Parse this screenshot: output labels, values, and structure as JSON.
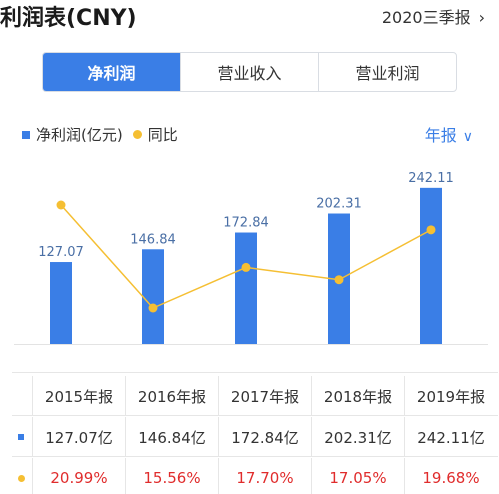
{
  "header": {
    "title": "利润表(CNY)",
    "period_label": "2020三季报",
    "period_chevron": "›"
  },
  "tabs": [
    {
      "label": "净利润",
      "active": true
    },
    {
      "label": "营业收入",
      "active": false
    },
    {
      "label": "营业利润",
      "active": false
    }
  ],
  "legend": {
    "series1_label": "净利润(亿元)",
    "series2_label": "同比"
  },
  "frequency": {
    "label": "年报",
    "chevron": "∨"
  },
  "colors": {
    "bar": "#3a7ee6",
    "line": "#f5bf33",
    "negative_text": "#e02c2c",
    "label_text": "#4a6fa5"
  },
  "chart_data": {
    "type": "bar",
    "categories": [
      "2015年报",
      "2016年报",
      "2017年报",
      "2018年报",
      "2019年报"
    ],
    "series": [
      {
        "name": "净利润(亿元)",
        "type": "bar",
        "values": [
          127.07,
          146.84,
          172.84,
          202.31,
          242.11
        ],
        "labels": [
          "127.07",
          "146.84",
          "172.84",
          "202.31",
          "242.11"
        ]
      },
      {
        "name": "同比",
        "type": "line",
        "values": [
          20.99,
          15.56,
          17.7,
          17.05,
          19.68
        ]
      }
    ],
    "grid": false
  },
  "table": {
    "headers": [
      "2015年报",
      "2016年报",
      "2017年报",
      "2018年报",
      "2019年报"
    ],
    "profit_row": [
      "127.07亿",
      "146.84亿",
      "172.84亿",
      "202.31亿",
      "242.11亿"
    ],
    "growth_row": [
      "20.99%",
      "15.56%",
      "17.70%",
      "17.05%",
      "19.68%"
    ]
  }
}
